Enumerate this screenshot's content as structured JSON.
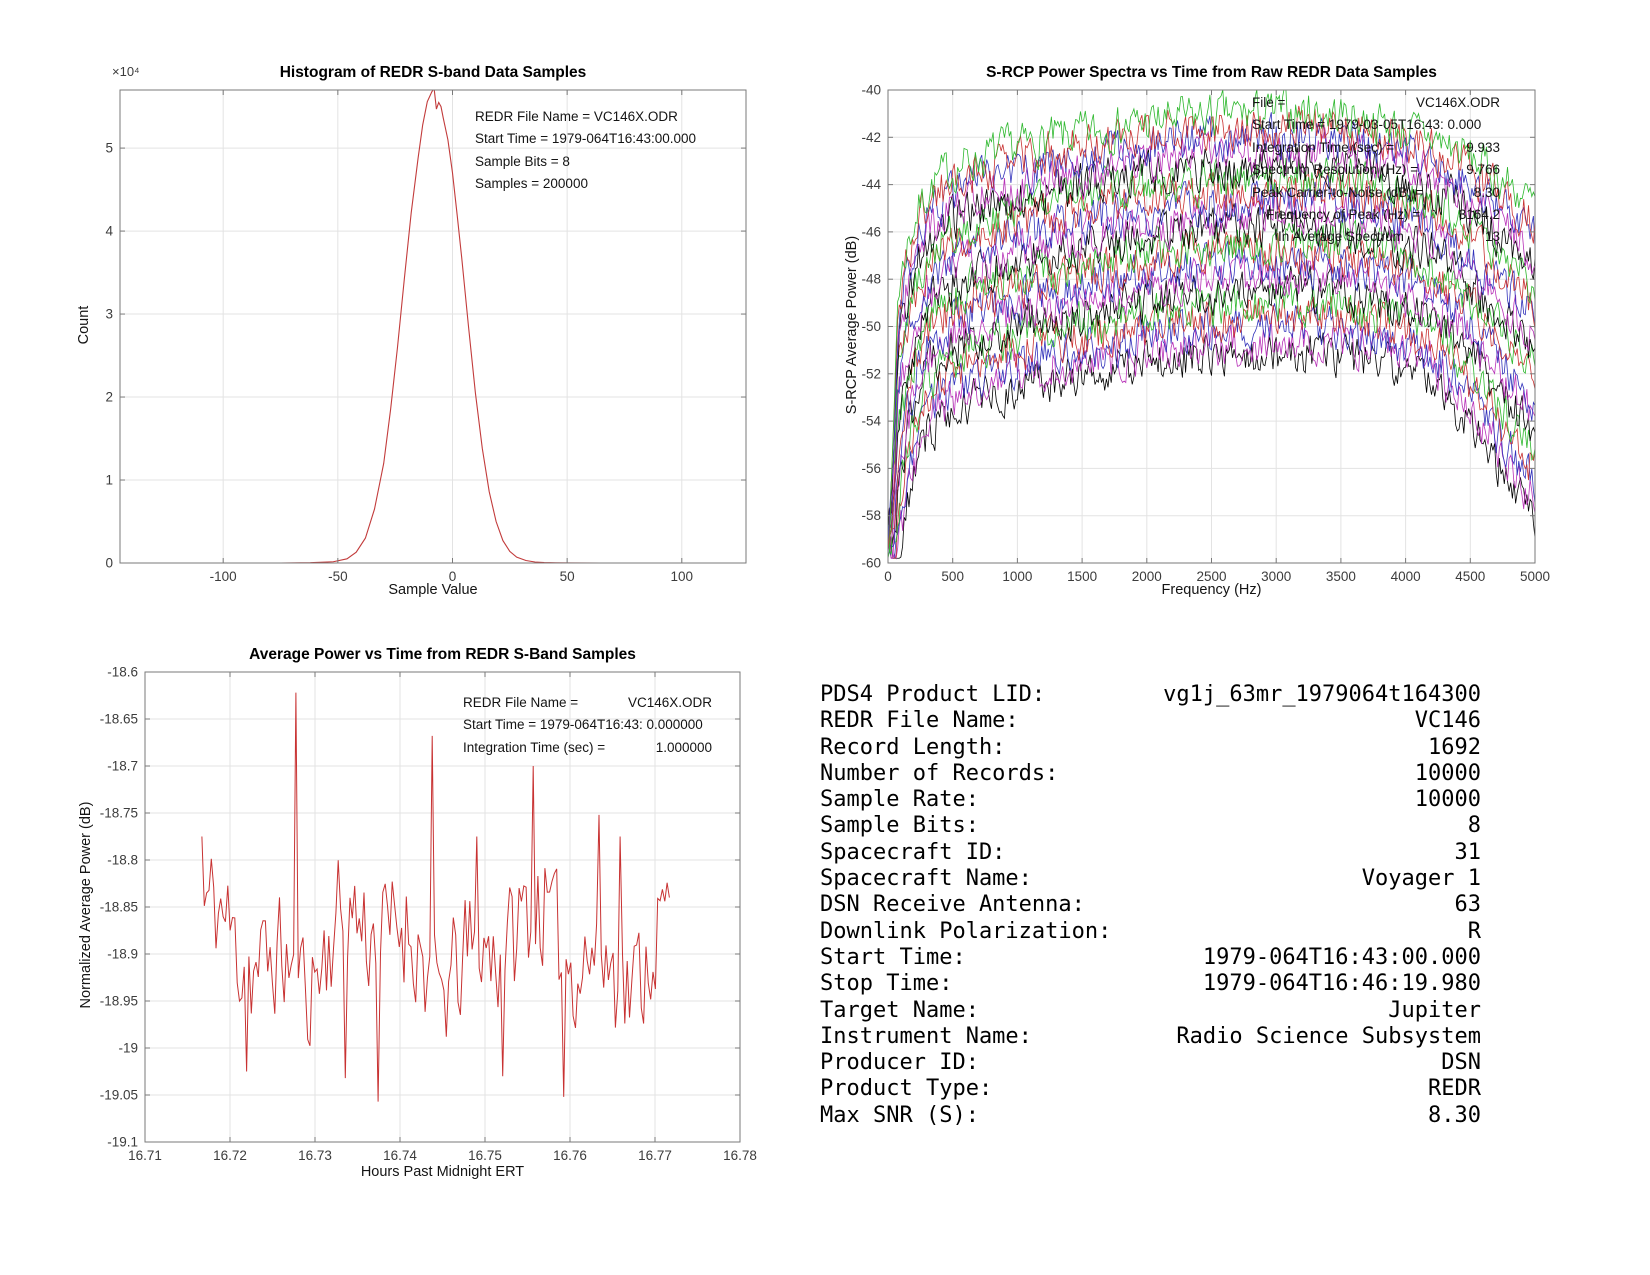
{
  "figure": {
    "background": "#ffffff"
  },
  "metadata_panel": {
    "rows": [
      {
        "label": "PDS4 Product LID:",
        "value": "vg1j_63mr_1979064t164300"
      },
      {
        "label": "REDR File Name:",
        "value": "VC146"
      },
      {
        "label": "Record Length:",
        "value": "1692"
      },
      {
        "label": "Number of Records:",
        "value": "10000"
      },
      {
        "label": "Sample Rate:",
        "value": "10000"
      },
      {
        "label": "Sample Bits:",
        "value": "8"
      },
      {
        "label": "Spacecraft ID:",
        "value": "31"
      },
      {
        "label": "Spacecraft Name:",
        "value": "Voyager 1"
      },
      {
        "label": "DSN Receive Antenna:",
        "value": "63"
      },
      {
        "label": "Downlink Polarization:",
        "value": "R"
      },
      {
        "label": "Start Time:",
        "value": "1979-064T16:43:00.000"
      },
      {
        "label": "Stop Time:",
        "value": "1979-064T16:46:19.980"
      },
      {
        "label": "Target Name:",
        "value": "Jupiter"
      },
      {
        "label": "Instrument Name:",
        "value": "Radio Science Subsystem"
      },
      {
        "label": "Producer ID:",
        "value": "DSN"
      },
      {
        "label": "Product Type:",
        "value": "REDR"
      },
      {
        "label": "Max SNR (S):",
        "value": "8.30"
      }
    ]
  },
  "chart_data": [
    {
      "id": "histogram",
      "type": "line",
      "title": "Histogram of REDR S-band Data Samples",
      "xlabel": "Sample Value",
      "ylabel": "Count",
      "y_scale_label": "×10⁴",
      "xlim": [
        -145,
        128
      ],
      "ylim": [
        0,
        5.7
      ],
      "x_ticks": [
        -100,
        -50,
        0,
        50,
        100
      ],
      "x_tick_labels": [
        "-100",
        "-50",
        "0",
        "50",
        "100"
      ],
      "y_ticks": [
        0,
        1,
        2,
        3,
        4,
        5
      ],
      "y_tick_labels": [
        "0",
        "1",
        "2",
        "3",
        "4",
        "5"
      ],
      "grid": true,
      "line_color": "#c23b3b",
      "annotations": [
        "REDR File Name = VC146X.ODR",
        "Start Time = 1979-064T16:43:00.000",
        "Sample Bits = 8",
        "Samples = 200000"
      ],
      "profile": {
        "x": [
          -128,
          -75,
          -62,
          -52,
          -46,
          -42,
          -38,
          -34,
          -30,
          -27,
          -24,
          -21,
          -18,
          -15,
          -13,
          -11,
          -9,
          -8,
          -7,
          -6,
          -5,
          -4,
          -2,
          0,
          2,
          4,
          7,
          10,
          13,
          16,
          19,
          22,
          25,
          28,
          32,
          36,
          40,
          45,
          52,
          65,
          90,
          127
        ],
        "y": [
          0,
          0,
          0.004,
          0.015,
          0.05,
          0.13,
          0.3,
          0.65,
          1.2,
          1.85,
          2.6,
          3.42,
          4.22,
          4.88,
          5.28,
          5.56,
          5.68,
          5.72,
          5.47,
          5.55,
          5.5,
          5.36,
          5.1,
          4.7,
          4.2,
          3.68,
          2.85,
          2.05,
          1.38,
          0.86,
          0.5,
          0.27,
          0.14,
          0.07,
          0.03,
          0.012,
          0.005,
          0.002,
          0.001,
          0,
          0,
          0
        ]
      }
    },
    {
      "id": "spectra",
      "type": "multiline",
      "title": "S-RCP Power Spectra vs Time from Raw REDR Data Samples",
      "xlabel": "Frequency (Hz)",
      "ylabel": "S-RCP Average Power (dB)",
      "xlim": [
        0,
        5000
      ],
      "ylim": [
        -60,
        -40
      ],
      "x_ticks": [
        0,
        500,
        1000,
        1500,
        2000,
        2500,
        3000,
        3500,
        4000,
        4500,
        5000
      ],
      "x_tick_labels": [
        "0",
        "500",
        "1000",
        "1500",
        "2000",
        "2500",
        "3000",
        "3500",
        "4000",
        "4500",
        "5000"
      ],
      "y_ticks": [
        -60,
        -58,
        -56,
        -54,
        -52,
        -50,
        -48,
        -46,
        -44,
        -42,
        -40
      ],
      "y_tick_labels": [
        "-60",
        "-58",
        "-56",
        "-54",
        "-52",
        "-50",
        "-48",
        "-46",
        "-44",
        "-42",
        "-40"
      ],
      "grid": true,
      "annotation_rows": [
        {
          "label": "File =",
          "value": "VC146X.ODR",
          "indent": 0
        },
        {
          "label": "Start Time = 1979-03-05T16:43: 0.000",
          "value": "",
          "indent": 0
        },
        {
          "label": "Integration Time (sec) =",
          "value": "9.933",
          "indent": 0
        },
        {
          "label": "Spectrum Resolution (Hz) =",
          "value": "9.766",
          "indent": 0
        },
        {
          "label": "Peak Carrier-to-Noise (dB) =",
          "value": "8.30",
          "indent": 0
        },
        {
          "label": "Frequency of Peak (Hz) =",
          "value": "3164.2",
          "indent": 14
        },
        {
          "label": "In Average Spectrum",
          "value": "13",
          "indent": 26
        }
      ],
      "gen": {
        "n_series": 20,
        "seed": 7,
        "noise_db": 1.35,
        "step_hz": 12.5,
        "offset_top": 4.9,
        "offset_bottom": -5.3,
        "envelope_f": [
          0,
          80,
          150,
          250,
          400,
          600,
          800,
          1000,
          1250,
          1500,
          1750,
          2000,
          2250,
          2500,
          2750,
          3000,
          3250,
          3500,
          3750,
          4000,
          4200,
          4400,
          4600,
          4800,
          5000
        ],
        "envelope_db": [
          -58.5,
          -52.8,
          -51.0,
          -49.6,
          -48.6,
          -48.0,
          -47.6,
          -47.3,
          -47.0,
          -46.8,
          -46.5,
          -46.3,
          -46.1,
          -46.0,
          -45.9,
          -45.85,
          -45.8,
          -45.95,
          -46.2,
          -46.6,
          -46.9,
          -47.3,
          -47.9,
          -48.6,
          -49.4
        ],
        "colors": [
          "#2eb82e",
          "#c83232",
          "#3333bb",
          "#b832b8",
          "#000000"
        ]
      }
    },
    {
      "id": "avgpower",
      "type": "timeseries",
      "title": "Average Power vs Time from REDR S-Band Samples",
      "xlabel": "Hours Past Midnight ERT",
      "ylabel": "Normalized Average Power (dB)",
      "xlim": [
        16.71,
        16.78
      ],
      "ylim": [
        -19.1,
        -18.6
      ],
      "x_ticks": [
        16.71,
        16.72,
        16.73,
        16.74,
        16.75,
        16.76,
        16.77,
        16.78
      ],
      "x_tick_labels": [
        "16.71",
        "16.72",
        "16.73",
        "16.74",
        "16.75",
        "16.76",
        "16.77",
        "16.78"
      ],
      "y_ticks": [
        -19.1,
        -19.05,
        -19,
        -18.95,
        -18.9,
        -18.85,
        -18.8,
        -18.75,
        -18.7,
        -18.65,
        -18.6
      ],
      "y_tick_labels": [
        "-19.1",
        "-19.05",
        "-19",
        "-18.95",
        "-18.9",
        "-18.85",
        "-18.8",
        "-18.75",
        "-18.7",
        "-18.65",
        "-18.6"
      ],
      "grid": true,
      "line_color": "#c83232",
      "annotation_rows": [
        {
          "label": "REDR File Name =",
          "value": "VC146X.ODR"
        },
        {
          "label": "Start Time = 1979-064T16:43: 0.000000",
          "value": ""
        },
        {
          "label": "Integration Time (sec) =",
          "value": "1.000000"
        }
      ],
      "gen": {
        "seed": 11,
        "n": 200,
        "x_start": 16.7167,
        "x_end": 16.7717,
        "base": -18.893,
        "noise": 0.082,
        "start_value": -18.775,
        "end_value": -18.84,
        "peaks": [
          [
            16.7278,
            -18.622
          ],
          [
            16.7437,
            -18.668
          ],
          [
            16.7557,
            -18.7
          ],
          [
            16.749,
            -18.775
          ],
          [
            16.7635,
            -18.752
          ],
          [
            16.766,
            -18.775
          ]
        ],
        "dips": [
          [
            16.722,
            -19.025
          ],
          [
            16.7335,
            -19.032
          ],
          [
            16.7375,
            -19.057
          ],
          [
            16.752,
            -19.03
          ],
          [
            16.7593,
            -19.052
          ]
        ]
      }
    }
  ]
}
